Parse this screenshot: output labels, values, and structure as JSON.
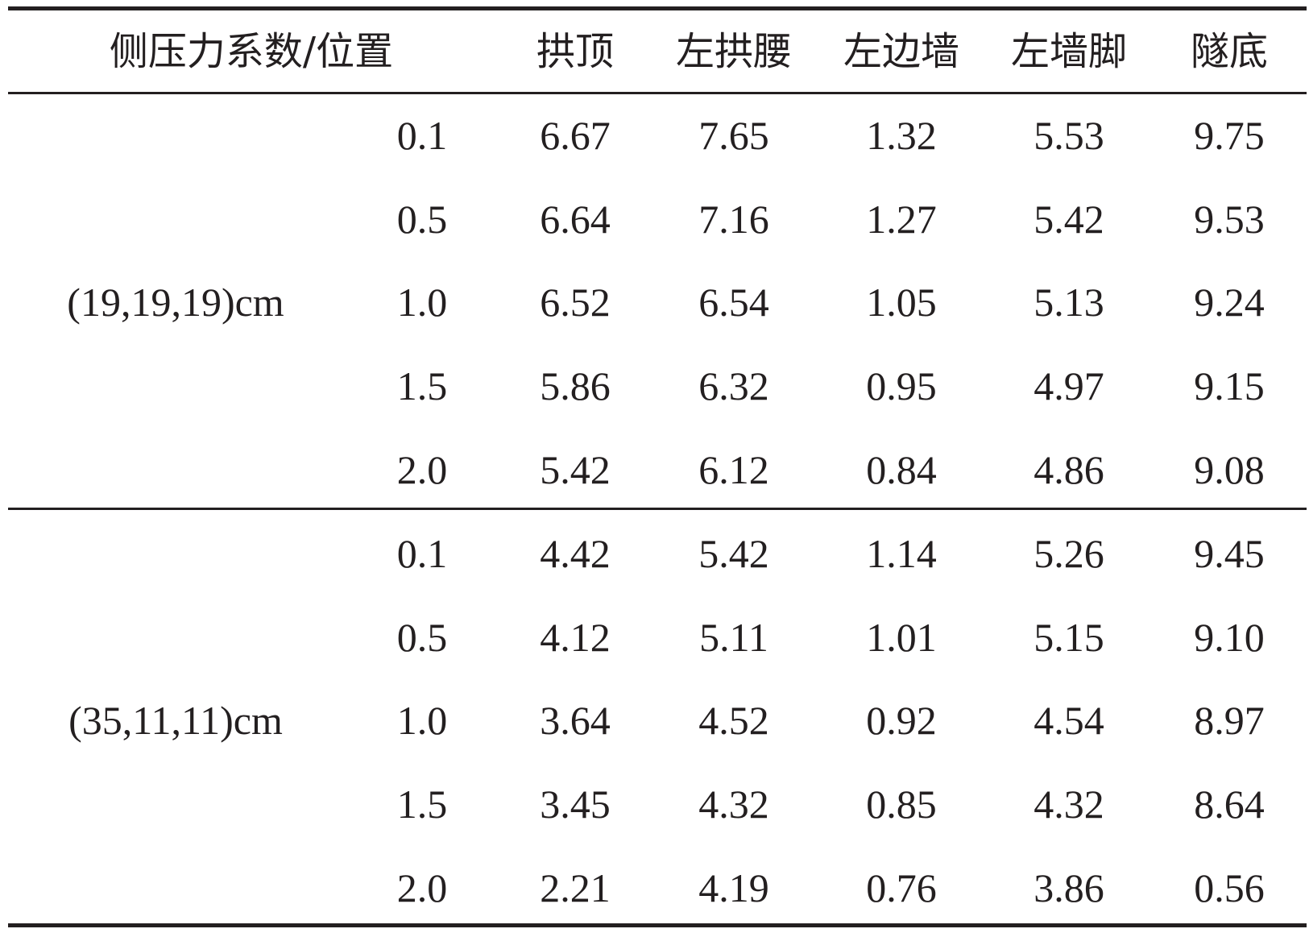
{
  "table": {
    "header": [
      "侧压力系数/位置",
      "拱顶",
      "左拱腰",
      "左边墙",
      "左墙脚",
      "隧底"
    ],
    "groups": [
      {
        "label": "(19,19,19)cm",
        "rows": [
          [
            "0.1",
            "6.67",
            "7.65",
            "1.32",
            "5.53",
            "9.75"
          ],
          [
            "0.5",
            "6.64",
            "7.16",
            "1.27",
            "5.42",
            "9.53"
          ],
          [
            "1.0",
            "6.52",
            "6.54",
            "1.05",
            "5.13",
            "9.24"
          ],
          [
            "1.5",
            "5.86",
            "6.32",
            "0.95",
            "4.97",
            "9.15"
          ],
          [
            "2.0",
            "5.42",
            "6.12",
            "0.84",
            "4.86",
            "9.08"
          ]
        ]
      },
      {
        "label": "(35,11,11)cm",
        "rows": [
          [
            "0.1",
            "4.42",
            "5.42",
            "1.14",
            "5.26",
            "9.45"
          ],
          [
            "0.5",
            "4.12",
            "5.11",
            "1.01",
            "5.15",
            "9.10"
          ],
          [
            "1.0",
            "3.64",
            "4.52",
            "0.92",
            "4.54",
            "8.97"
          ],
          [
            "1.5",
            "3.45",
            "4.32",
            "0.85",
            "4.32",
            "8.64"
          ],
          [
            "2.0",
            "2.21",
            "4.19",
            "0.76",
            "3.86",
            "0.56"
          ]
        ]
      }
    ]
  }
}
